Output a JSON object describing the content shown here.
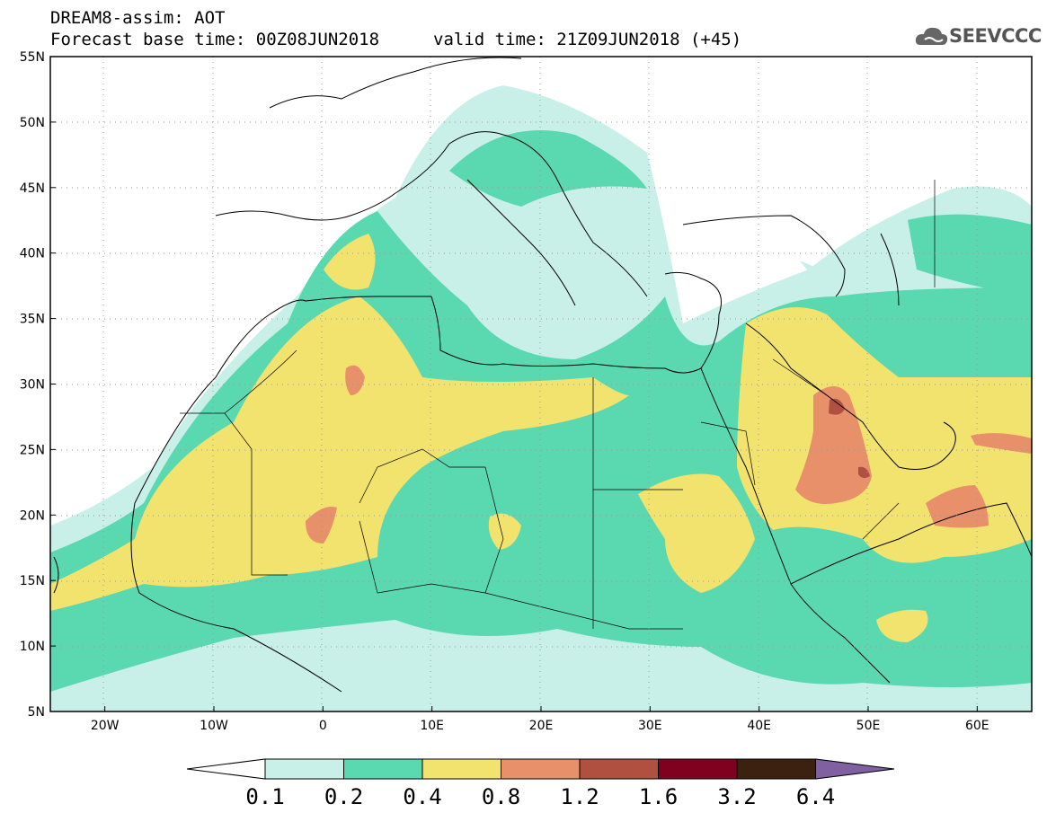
{
  "header": {
    "line1": "DREAM8-assim: AOT",
    "line2": "Forecast base time: 00Z08JUN2018",
    "line3": "valid time: 21Z09JUN2018 (+45)",
    "logo_text": "SEEVCCC"
  },
  "map": {
    "extent": {
      "lon": [
        -25,
        65
      ],
      "lat": [
        5,
        55
      ]
    },
    "lat_ticks": [
      "55N",
      "50N",
      "45N",
      "40N",
      "35N",
      "30N",
      "25N",
      "20N",
      "15N",
      "10N",
      "5N"
    ],
    "lon_ticks": [
      "20W",
      "10W",
      "0",
      "10E",
      "20E",
      "30E",
      "40E",
      "50E",
      "60E"
    ]
  },
  "colorbar": {
    "labels": [
      "0.1",
      "0.2",
      "0.4",
      "0.8",
      "1.2",
      "1.6",
      "3.2",
      "6.4"
    ],
    "colors": [
      "#ffffff",
      "#c8f0e8",
      "#5ad8b0",
      "#f2e26e",
      "#e8906a",
      "#b05040",
      "#800020",
      "#3c2010",
      "#8060a0"
    ]
  }
}
